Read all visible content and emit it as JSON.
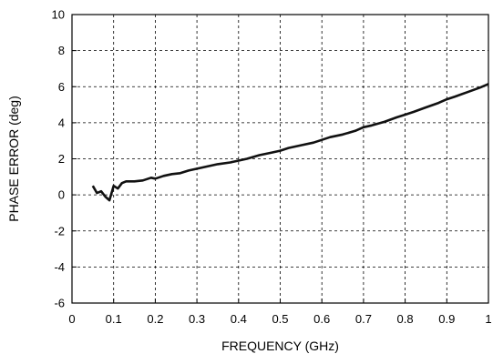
{
  "chart_data": {
    "type": "line",
    "xlabel": "FREQUENCY (GHz)",
    "ylabel": "PHASE ERROR (deg)",
    "xlim": [
      0,
      1
    ],
    "ylim": [
      -6,
      10
    ],
    "x_ticks": [
      0,
      0.1,
      0.2,
      0.3,
      0.4,
      0.5,
      0.6,
      0.7,
      0.8,
      0.9,
      1
    ],
    "x_tick_labels": [
      "0",
      "0.1",
      "0.2",
      "0.3",
      "0.4",
      "0.5",
      "0.6",
      "0.7",
      "0.8",
      "0.9",
      "1"
    ],
    "y_ticks": [
      -6,
      -4,
      -2,
      0,
      2,
      4,
      6,
      8,
      10
    ],
    "y_tick_labels": [
      "-6",
      "-4",
      "-2",
      "0",
      "2",
      "4",
      "6",
      "8",
      "10"
    ],
    "grid": true,
    "grid_style": "dashed",
    "line_color": "#111111",
    "series": [
      {
        "x": [
          0.05,
          0.06,
          0.07,
          0.08,
          0.09,
          0.1,
          0.11,
          0.12,
          0.13,
          0.15,
          0.17,
          0.19,
          0.2,
          0.22,
          0.24,
          0.26,
          0.28,
          0.3,
          0.32,
          0.35,
          0.38,
          0.4,
          0.42,
          0.45,
          0.48,
          0.5,
          0.52,
          0.55,
          0.58,
          0.6,
          0.62,
          0.65,
          0.68,
          0.7,
          0.72,
          0.75,
          0.78,
          0.8,
          0.82,
          0.85,
          0.88,
          0.9,
          0.92,
          0.95,
          0.98,
          1.0
        ],
        "y": [
          0.5,
          0.1,
          0.2,
          -0.1,
          -0.3,
          0.5,
          0.35,
          0.65,
          0.75,
          0.75,
          0.8,
          0.95,
          0.9,
          1.05,
          1.15,
          1.2,
          1.35,
          1.45,
          1.55,
          1.7,
          1.8,
          1.9,
          2.0,
          2.2,
          2.35,
          2.45,
          2.6,
          2.75,
          2.9,
          3.05,
          3.2,
          3.35,
          3.55,
          3.75,
          3.85,
          4.05,
          4.3,
          4.45,
          4.6,
          4.85,
          5.1,
          5.3,
          5.45,
          5.7,
          5.95,
          6.15
        ]
      }
    ]
  }
}
